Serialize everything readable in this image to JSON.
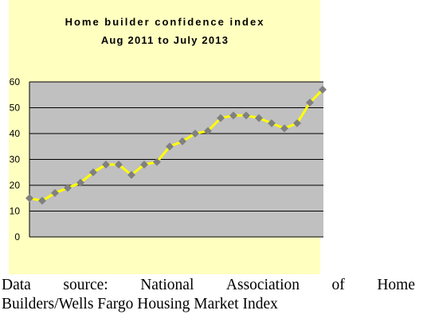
{
  "chart_data": {
    "type": "line",
    "title": [
      "Home builder confidence index",
      "Aug 2011 to July 2013"
    ],
    "xlabel": "",
    "ylabel": "",
    "ylim": [
      0,
      60
    ],
    "yticks": [
      0,
      10,
      20,
      30,
      40,
      50,
      60
    ],
    "grid": true,
    "legend": "none",
    "series": [
      {
        "values": [
          15,
          14,
          17,
          19,
          21,
          25,
          28,
          28,
          24,
          28,
          29,
          35,
          37,
          40,
          41,
          46,
          47,
          47,
          46,
          44,
          42,
          44,
          52,
          57
        ]
      }
    ],
    "colors": {
      "background": "#ffffc0",
      "plot": "#c0c0c0",
      "line": "#ffff00",
      "marker": "#808080",
      "grid": "#000000"
    }
  },
  "caption": {
    "words_line1": [
      "Data",
      "source:",
      "National",
      "Association",
      "of",
      "Home"
    ],
    "line2": "Builders/Wells Fargo Housing Market Index"
  }
}
